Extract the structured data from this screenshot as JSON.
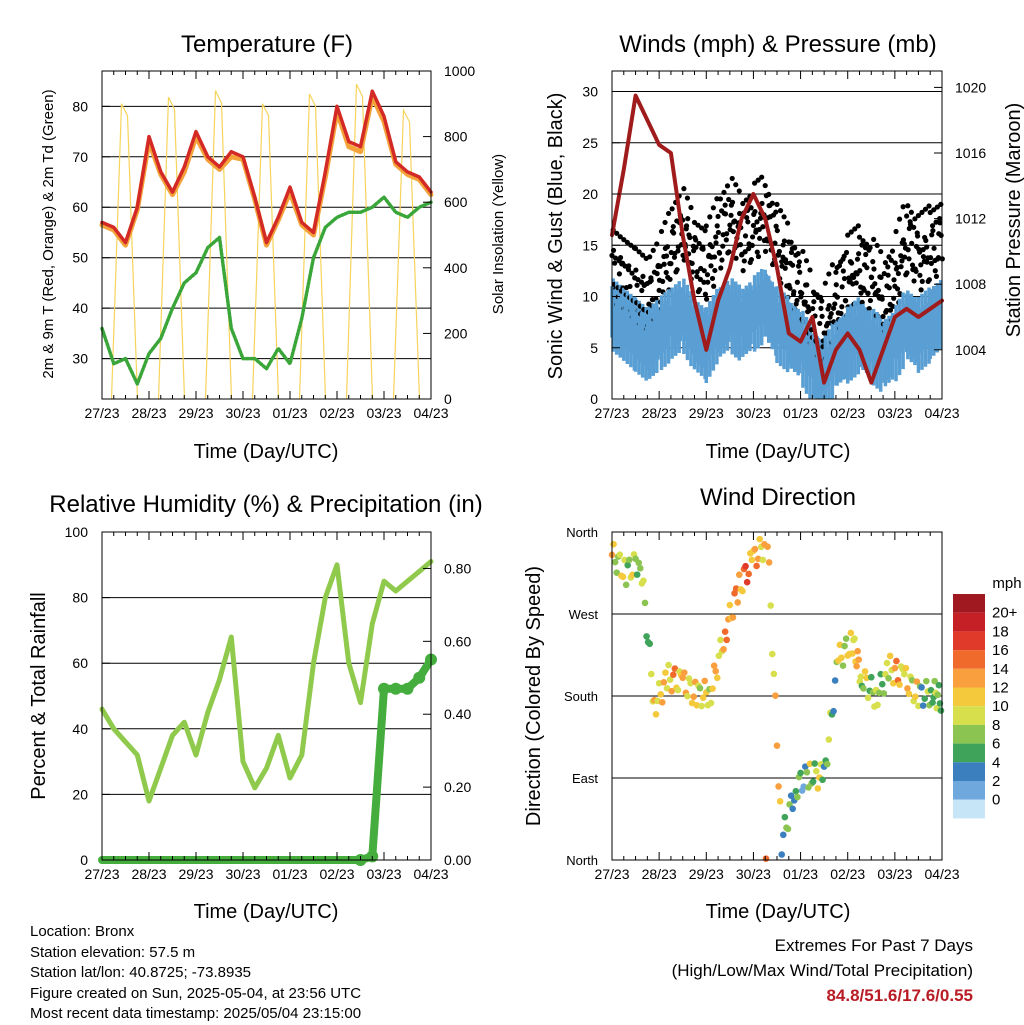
{
  "time_ticks": [
    "27/23",
    "28/23",
    "29/23",
    "30/23",
    "01/23",
    "02/23",
    "03/23",
    "04/23"
  ],
  "temperature": {
    "title": "Temperature (F)",
    "xlabel": "Time (Day/UTC)",
    "ylabel_left": "2m & 9m T (Red, Orange) & 2m Td (Green)",
    "ylabel_right": "Solar Insolation (Yellow)",
    "left_ticks": [
      "30",
      "40",
      "50",
      "60",
      "70",
      "80"
    ],
    "right_ticks": [
      "0",
      "200",
      "400",
      "600",
      "800",
      "1000"
    ]
  },
  "winds": {
    "title": "Winds (mph) & Pressure (mb)",
    "xlabel": "Time (Day/UTC)",
    "ylabel_left": "Sonic Wind & Gust (Blue, Black)",
    "ylabel_right": "Station Pressure (Maroon)",
    "left_ticks": [
      "0",
      "5",
      "10",
      "15",
      "20",
      "25",
      "30"
    ],
    "right_ticks": [
      "1004",
      "1008",
      "1012",
      "1016",
      "1020"
    ]
  },
  "humidity": {
    "title": "Relative Humidity (%) & Precipitation (in)",
    "xlabel": "Time (Day/UTC)",
    "ylabel_left": "Percent & Total Rainfall",
    "left_ticks": [
      "0",
      "20",
      "40",
      "60",
      "80",
      "100"
    ],
    "right_ticks": [
      "0.00",
      "0.20",
      "0.40",
      "0.60",
      "0.80"
    ]
  },
  "direction": {
    "title": "Wind Direction",
    "xlabel": "Time (Day/UTC)",
    "ylabel_left": "Direction (Colored By Speed)",
    "left_ticks": [
      "North",
      "East",
      "South",
      "West",
      "North"
    ],
    "legend_title": "mph",
    "legend_labels": [
      "20+",
      "18",
      "16",
      "14",
      "12",
      "10",
      "8",
      "6",
      "4",
      "2",
      "0"
    ],
    "legend_colors": [
      "#a01920",
      "#c52026",
      "#e03a2a",
      "#f06a2c",
      "#f99f3d",
      "#f5c93c",
      "#d8df4c",
      "#8cc452",
      "#3fa45a",
      "#3b7fbf",
      "#6fa8dc",
      "#c6e6f8"
    ]
  },
  "info": {
    "location": "Location: Bronx",
    "elevation": "Station elevation: 57.5 m",
    "latlon": "Station lat/lon: 40.8725; -73.8935",
    "created": "Figure created on Sun, 2025-05-04, at 23:56 UTC",
    "recent": "Most recent data timestamp: 2025/05/04 23:15:00"
  },
  "extremes": {
    "title": "Extremes For Past 7 Days",
    "subtitle": "(High/Low/Max Wind/Total Precipitation)",
    "values": "84.8/51.6/17.6/0.55"
  },
  "colors": {
    "temp_red": "#d42a26",
    "temp_orange": "#f4a23a",
    "dewpoint_green": "#3aa63a",
    "solar_yellow": "#f6d45c",
    "wind_blue": "#5a9fd4",
    "gust_black": "#000000",
    "pressure_maroon": "#a01c1c",
    "rh_green": "#8fca4c",
    "precip_green": "#44ad3d",
    "extremes_red": "#b81c25"
  },
  "chart_data": [
    {
      "type": "line",
      "title": "Temperature (F)",
      "xlabel": "Time (Day/UTC)",
      "ylabel": "2m & 9m T (Red, Orange) & 2m Td (Green)",
      "ylim": [
        22,
        87
      ],
      "y2label": "Solar Insolation (Yellow)",
      "y2lim": [
        0,
        1000
      ],
      "x": [
        0,
        0.25,
        0.5,
        0.75,
        1,
        1.25,
        1.5,
        1.75,
        2,
        2.25,
        2.5,
        2.75,
        3,
        3.25,
        3.5,
        3.75,
        4,
        4.25,
        4.5,
        4.75,
        5,
        5.25,
        5.5,
        5.75,
        6,
        6.25,
        6.5,
        6.75,
        7
      ],
      "series": [
        {
          "name": "2m T",
          "axis": "left",
          "values": [
            57,
            56,
            53,
            60,
            74,
            67,
            63,
            68,
            75,
            70,
            68,
            71,
            70,
            62,
            53,
            58,
            64,
            57,
            55,
            67,
            80,
            73,
            72,
            83,
            78,
            69,
            67,
            66,
            63
          ]
        },
        {
          "name": "9m T",
          "axis": "left",
          "values": [
            56.5,
            55.5,
            52.5,
            59.5,
            73,
            66.5,
            62.5,
            67,
            74,
            69.5,
            67.5,
            70,
            69.5,
            61.5,
            52.5,
            57.5,
            63,
            56.5,
            54.5,
            66,
            79,
            72,
            71,
            82,
            77,
            68.5,
            66.5,
            65.5,
            62.5
          ]
        },
        {
          "name": "2m Td",
          "axis": "left",
          "values": [
            36,
            29,
            30,
            25,
            31,
            34,
            40,
            45,
            47,
            52,
            54,
            36,
            30,
            30,
            28,
            32,
            29,
            38,
            50,
            56,
            58,
            59,
            59,
            60,
            62,
            59,
            58,
            60,
            61
          ]
        },
        {
          "name": "Solar Insolation",
          "axis": "right",
          "values": [
            0,
            0,
            900,
            0,
            0,
            0,
            920,
            0,
            0,
            0,
            940,
            0,
            0,
            0,
            900,
            0,
            0,
            0,
            930,
            0,
            0,
            0,
            960,
            0,
            0,
            0,
            880,
            0,
            0
          ]
        }
      ]
    },
    {
      "type": "line",
      "title": "Winds (mph) & Pressure (mb)",
      "xlabel": "Time (Day/UTC)",
      "ylabel": "Sonic Wind & Gust (Blue, Black)",
      "ylim": [
        0,
        32
      ],
      "y2label": "Station Pressure (Maroon)",
      "y2lim": [
        1001,
        1021
      ],
      "x": [
        0,
        0.25,
        0.5,
        0.75,
        1,
        1.25,
        1.5,
        1.75,
        2,
        2.25,
        2.5,
        2.75,
        3,
        3.25,
        3.5,
        3.75,
        4,
        4.25,
        4.5,
        4.75,
        5,
        5.25,
        5.5,
        5.75,
        6,
        6.25,
        6.5,
        6.75,
        7
      ],
      "series": [
        {
          "name": "Sonic Wind",
          "axis": "left",
          "values": [
            9,
            8,
            7,
            6,
            7,
            8,
            9,
            7,
            6,
            8,
            9,
            8,
            9,
            10,
            8,
            7,
            6,
            4,
            3,
            5,
            6,
            7,
            6,
            5,
            6,
            8,
            7,
            8,
            9
          ]
        },
        {
          "name": "Gust",
          "axis": "left",
          "values": [
            14,
            13,
            12,
            11,
            13,
            16,
            18,
            15,
            14,
            17,
            19,
            17,
            18,
            19,
            16,
            14,
            12,
            9,
            8,
            11,
            13,
            14,
            13,
            11,
            13,
            17,
            15,
            16,
            17
          ]
        },
        {
          "name": "Station Pressure",
          "axis": "right",
          "values": [
            1011,
            1015,
            1019.5,
            1018,
            1016.5,
            1016,
            1011,
            1007,
            1004,
            1007,
            1009,
            1012,
            1013.5,
            1012,
            1009,
            1005,
            1004.5,
            1006,
            1002,
            1004,
            1005,
            1004,
            1002,
            1004,
            1006,
            1006.5,
            1006,
            1006.5,
            1007
          ]
        }
      ]
    },
    {
      "type": "line",
      "title": "Relative Humidity (%) & Precipitation (in)",
      "xlabel": "Time (Day/UTC)",
      "ylabel": "Percent & Total Rainfall",
      "ylim": [
        0,
        100
      ],
      "y2lim": [
        0,
        0.9
      ],
      "x": [
        0,
        0.25,
        0.5,
        0.75,
        1,
        1.25,
        1.5,
        1.75,
        2,
        2.25,
        2.5,
        2.75,
        3,
        3.25,
        3.5,
        3.75,
        4,
        4.25,
        4.5,
        4.75,
        5,
        5.25,
        5.5,
        5.75,
        6,
        6.25,
        6.5,
        6.75,
        7
      ],
      "series": [
        {
          "name": "Relative Humidity",
          "axis": "left",
          "values": [
            46,
            40,
            36,
            32,
            18,
            28,
            38,
            42,
            32,
            45,
            55,
            68,
            30,
            22,
            28,
            38,
            25,
            32,
            60,
            80,
            90,
            60,
            48,
            72,
            85,
            82,
            85,
            88,
            91
          ]
        },
        {
          "name": "Total Precipitation",
          "axis": "right",
          "values": [
            0,
            0,
            0,
            0,
            0,
            0,
            0,
            0,
            0,
            0,
            0,
            0,
            0,
            0,
            0,
            0,
            0,
            0,
            0,
            0,
            0,
            0,
            0,
            0.01,
            0.47,
            0.47,
            0.47,
            0.5,
            0.55
          ]
        }
      ]
    },
    {
      "type": "scatter",
      "title": "Wind Direction",
      "xlabel": "Time (Day/UTC)",
      "ylabel": "Direction (Colored By Speed)",
      "ylim": [
        0,
        360
      ],
      "yticks": [
        "North",
        "East",
        "South",
        "West",
        "North"
      ],
      "colorbar_label": "mph",
      "x": [
        0,
        0.3,
        0.6,
        0.9,
        1.2,
        1.5,
        1.8,
        2.1,
        2.4,
        2.7,
        3.0,
        3.3,
        3.6,
        3.9,
        4.2,
        4.5,
        4.8,
        5.1,
        5.3,
        5.6,
        5.9,
        6.2,
        6.5,
        6.8,
        7.0
      ],
      "values": [
        335,
        315,
        330,
        170,
        200,
        195,
        180,
        185,
        250,
        300,
        330,
        350,
        20,
        80,
        95,
        90,
        220,
        240,
        200,
        180,
        210,
        200,
        180,
        185,
        175
      ],
      "speeds": [
        10,
        9,
        8,
        12,
        13,
        12,
        11,
        12,
        14,
        15,
        13,
        12,
        6,
        5,
        9,
        7,
        10,
        12,
        9,
        8,
        13,
        11,
        7,
        8,
        8
      ]
    }
  ]
}
